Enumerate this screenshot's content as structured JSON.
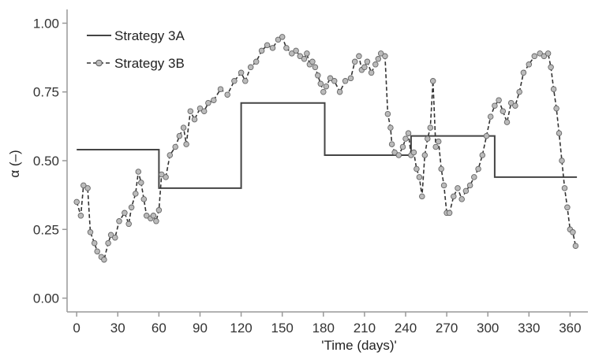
{
  "chart_data": {
    "type": "line",
    "title": "",
    "xlabel": "'Time (days)'",
    "ylabel": "α (–)",
    "xlim": [
      -7,
      373
    ],
    "ylim": [
      -0.05,
      1.05
    ],
    "x_ticks": [
      0,
      30,
      60,
      90,
      120,
      150,
      180,
      210,
      240,
      270,
      300,
      330,
      360
    ],
    "y_ticks": [
      0.0,
      0.25,
      0.5,
      0.75,
      1.0
    ],
    "x_tick_labels": [
      "0",
      "30",
      "60",
      "90",
      "120",
      "150",
      "180",
      "210",
      "240",
      "270",
      "300",
      "330",
      "360"
    ],
    "y_tick_labels": [
      "0.00",
      "0.25",
      "0.50",
      "0.75",
      "1.00"
    ],
    "grid": false,
    "legend_position": "top-left",
    "series": [
      {
        "name": "Strategy 3A",
        "style": "solid",
        "color": "#444444",
        "x": [
          0,
          60,
          60,
          120,
          120,
          181,
          181,
          244,
          244,
          305,
          305,
          365
        ],
        "y": [
          0.54,
          0.54,
          0.4,
          0.4,
          0.71,
          0.71,
          0.52,
          0.52,
          0.59,
          0.59,
          0.44,
          0.44
        ]
      },
      {
        "name": "Strategy 3B",
        "style": "dashed-with-circle-markers",
        "color": "#333333",
        "marker_fill": "#bbbbbb",
        "x": [
          0,
          3,
          5,
          8,
          10,
          13,
          15,
          18,
          20,
          23,
          25,
          28,
          31,
          35,
          38,
          40,
          43,
          45,
          47,
          49,
          51,
          54,
          56,
          58,
          60,
          62,
          65,
          68,
          72,
          75,
          78,
          80,
          83,
          86,
          90,
          93,
          96,
          100,
          105,
          110,
          115,
          120,
          123,
          127,
          131,
          135,
          139,
          143,
          147,
          150,
          153,
          157,
          160,
          163,
          166,
          168,
          170,
          172,
          174,
          176,
          178,
          180,
          182,
          185,
          188,
          192,
          196,
          200,
          203,
          206,
          208,
          210,
          212,
          215,
          218,
          220,
          222,
          225,
          227,
          229,
          230,
          232,
          235,
          238,
          240,
          242,
          244,
          246,
          248,
          250,
          252,
          254,
          256,
          258,
          260,
          262,
          264,
          266,
          268,
          270,
          272,
          275,
          278,
          281,
          284,
          287,
          290,
          293,
          296,
          299,
          302,
          305,
          308,
          311,
          314,
          317,
          320,
          323,
          326,
          330,
          334,
          338,
          341,
          344,
          346,
          348,
          350,
          352,
          354,
          356,
          358,
          360,
          362,
          364
        ],
        "y": [
          0.35,
          0.3,
          0.41,
          0.4,
          0.24,
          0.2,
          0.17,
          0.15,
          0.14,
          0.2,
          0.23,
          0.22,
          0.28,
          0.31,
          0.27,
          0.33,
          0.38,
          0.46,
          0.42,
          0.36,
          0.3,
          0.29,
          0.3,
          0.28,
          0.32,
          0.45,
          0.44,
          0.52,
          0.55,
          0.59,
          0.62,
          0.56,
          0.68,
          0.65,
          0.69,
          0.68,
          0.71,
          0.72,
          0.76,
          0.74,
          0.79,
          0.82,
          0.79,
          0.84,
          0.86,
          0.9,
          0.92,
          0.91,
          0.94,
          0.95,
          0.91,
          0.89,
          0.9,
          0.88,
          0.87,
          0.89,
          0.85,
          0.86,
          0.84,
          0.81,
          0.78,
          0.75,
          0.77,
          0.8,
          0.79,
          0.75,
          0.79,
          0.8,
          0.86,
          0.88,
          0.83,
          0.84,
          0.86,
          0.82,
          0.85,
          0.87,
          0.89,
          0.88,
          0.67,
          0.62,
          0.56,
          0.53,
          0.52,
          0.55,
          0.58,
          0.6,
          0.52,
          0.53,
          0.47,
          0.44,
          0.37,
          0.52,
          0.58,
          0.62,
          0.79,
          0.55,
          0.57,
          0.47,
          0.41,
          0.31,
          0.31,
          0.37,
          0.4,
          0.36,
          0.39,
          0.41,
          0.44,
          0.47,
          0.52,
          0.59,
          0.66,
          0.7,
          0.72,
          0.68,
          0.64,
          0.71,
          0.7,
          0.75,
          0.82,
          0.85,
          0.88,
          0.89,
          0.88,
          0.89,
          0.84,
          0.76,
          0.69,
          0.6,
          0.5,
          0.4,
          0.33,
          0.25,
          0.24,
          0.19
        ]
      }
    ]
  }
}
